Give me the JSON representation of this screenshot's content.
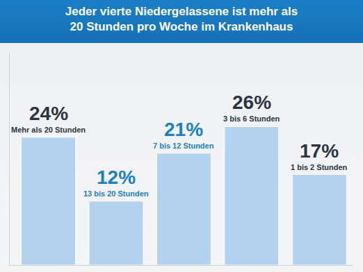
{
  "chart_data": {
    "type": "bar",
    "title": "Jeder vierte Niedergelassene ist mehr als 20 Stunden pro Woche im Krankenhaus",
    "categories": [
      "Mehr als 20 Stunden",
      "13 bis 20 Stunden",
      "7 bis 12 Stunden",
      "3 bis 6 Stunden",
      "1 bis 2 Stunden"
    ],
    "values": [
      24,
      12,
      21,
      26,
      17
    ],
    "value_labels": [
      "24%",
      "12%",
      "21%",
      "26%",
      "17%"
    ],
    "color": "#a9cdef",
    "ylim": [
      0,
      40
    ],
    "grid": false,
    "data_labels": true,
    "tick_labels": false
  }
}
